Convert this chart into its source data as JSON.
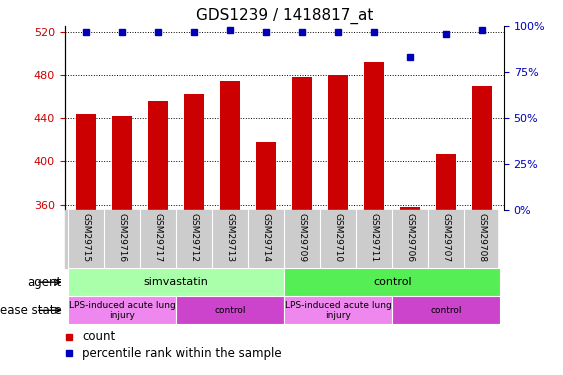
{
  "title": "GDS1239 / 1418817_at",
  "samples": [
    "GSM29715",
    "GSM29716",
    "GSM29717",
    "GSM29712",
    "GSM29713",
    "GSM29714",
    "GSM29709",
    "GSM29710",
    "GSM29711",
    "GSM29706",
    "GSM29707",
    "GSM29708"
  ],
  "counts": [
    444,
    442,
    456,
    462,
    474,
    418,
    478,
    480,
    492,
    358,
    407,
    470
  ],
  "percentile_ranks": [
    97,
    97,
    97,
    97,
    98,
    97,
    97,
    97,
    97,
    83,
    96,
    98
  ],
  "ylim_left": [
    355,
    525
  ],
  "ylim_right": [
    0,
    100
  ],
  "yticks_left": [
    360,
    400,
    440,
    480,
    520
  ],
  "yticks_right": [
    0,
    25,
    50,
    75,
    100
  ],
  "bar_color": "#cc0000",
  "dot_color": "#0000bb",
  "agent_groups": [
    {
      "label": "simvastatin",
      "start": 0,
      "end": 5,
      "color": "#aaffaa"
    },
    {
      "label": "control",
      "start": 6,
      "end": 11,
      "color": "#55ee55"
    }
  ],
  "disease_groups": [
    {
      "label": "LPS-induced acute lung\ninjury",
      "start": 0,
      "end": 2,
      "color": "#ee88ee"
    },
    {
      "label": "control",
      "start": 3,
      "end": 5,
      "color": "#cc44cc"
    },
    {
      "label": "LPS-induced acute lung\ninjury",
      "start": 6,
      "end": 8,
      "color": "#ee88ee"
    },
    {
      "label": "control",
      "start": 9,
      "end": 11,
      "color": "#cc44cc"
    }
  ],
  "tick_label_color_left": "#cc0000",
  "tick_label_color_right": "#0000bb",
  "xtick_bg_color": "#cccccc"
}
